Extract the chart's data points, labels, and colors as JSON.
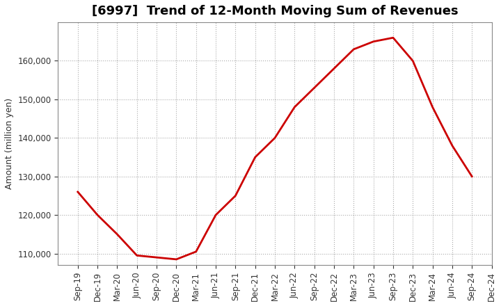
{
  "title": "[6997]  Trend of 12-Month Moving Sum of Revenues",
  "ylabel": "Amount (million yen)",
  "line_color": "#cc0000",
  "line_width": 2.0,
  "background_color": "#ffffff",
  "grid_color": "#aaaaaa",
  "x_labels": [
    "Sep-19",
    "Dec-19",
    "Mar-20",
    "Jun-20",
    "Sep-20",
    "Dec-20",
    "Mar-21",
    "Jun-21",
    "Sep-21",
    "Dec-21",
    "Mar-22",
    "Jun-22",
    "Sep-22",
    "Dec-22",
    "Mar-23",
    "Jun-23",
    "Sep-23",
    "Dec-23",
    "Mar-24",
    "Jun-24",
    "Sep-24",
    "Dec-24"
  ],
  "y_values": [
    126000,
    120000,
    115000,
    109500,
    109000,
    108500,
    110500,
    120000,
    125000,
    135000,
    140000,
    148000,
    153000,
    158000,
    163000,
    165000,
    166000,
    160000,
    148000,
    138000,
    130000,
    null
  ],
  "ylim": [
    107000,
    170000
  ],
  "yticks": [
    110000,
    120000,
    130000,
    140000,
    150000,
    160000
  ],
  "title_fontsize": 13,
  "axis_fontsize": 9,
  "tick_fontsize": 8.5
}
